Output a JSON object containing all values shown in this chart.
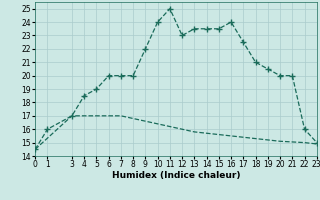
{
  "xlabel": "Humidex (Indice chaleur)",
  "bg_color": "#cce8e4",
  "grid_color": "#aacccc",
  "line_color": "#1a6b5a",
  "x_main": [
    0,
    1,
    3,
    4,
    5,
    6,
    7,
    8,
    9,
    10,
    11,
    12,
    13,
    14,
    15,
    16,
    17,
    18,
    19,
    20,
    21,
    22,
    23
  ],
  "y_main": [
    14.5,
    16.0,
    17.0,
    18.5,
    19.0,
    20.0,
    20.0,
    20.0,
    22.0,
    24.0,
    25.0,
    23.0,
    23.5,
    23.5,
    23.5,
    24.0,
    22.5,
    21.0,
    20.5,
    20.0,
    20.0,
    16.0,
    15.0
  ],
  "x_base": [
    0,
    3,
    4,
    5,
    6,
    7,
    8,
    9,
    10,
    11,
    12,
    13,
    14,
    15,
    16,
    17,
    18,
    19,
    20,
    21,
    22,
    23
  ],
  "y_base": [
    14.5,
    17.0,
    17.0,
    17.0,
    17.0,
    17.0,
    16.8,
    16.6,
    16.4,
    16.2,
    16.0,
    15.8,
    15.7,
    15.6,
    15.5,
    15.4,
    15.3,
    15.2,
    15.1,
    15.05,
    15.0,
    14.9
  ],
  "xlim": [
    0,
    23
  ],
  "ylim": [
    14,
    25.5
  ],
  "yticks": [
    14,
    15,
    16,
    17,
    18,
    19,
    20,
    21,
    22,
    23,
    24,
    25
  ],
  "xticks": [
    0,
    1,
    3,
    4,
    5,
    6,
    7,
    8,
    9,
    10,
    11,
    12,
    13,
    14,
    15,
    16,
    17,
    18,
    19,
    20,
    21,
    22,
    23
  ],
  "xtick_labels": [
    "0",
    "1",
    "3",
    "4",
    "5",
    "6",
    "7",
    "8",
    "9",
    "10",
    "11",
    "12",
    "13",
    "14",
    "15",
    "16",
    "17",
    "18",
    "19",
    "20",
    "21",
    "22",
    "23"
  ],
  "axis_fontsize": 6.5,
  "tick_fontsize": 5.5
}
